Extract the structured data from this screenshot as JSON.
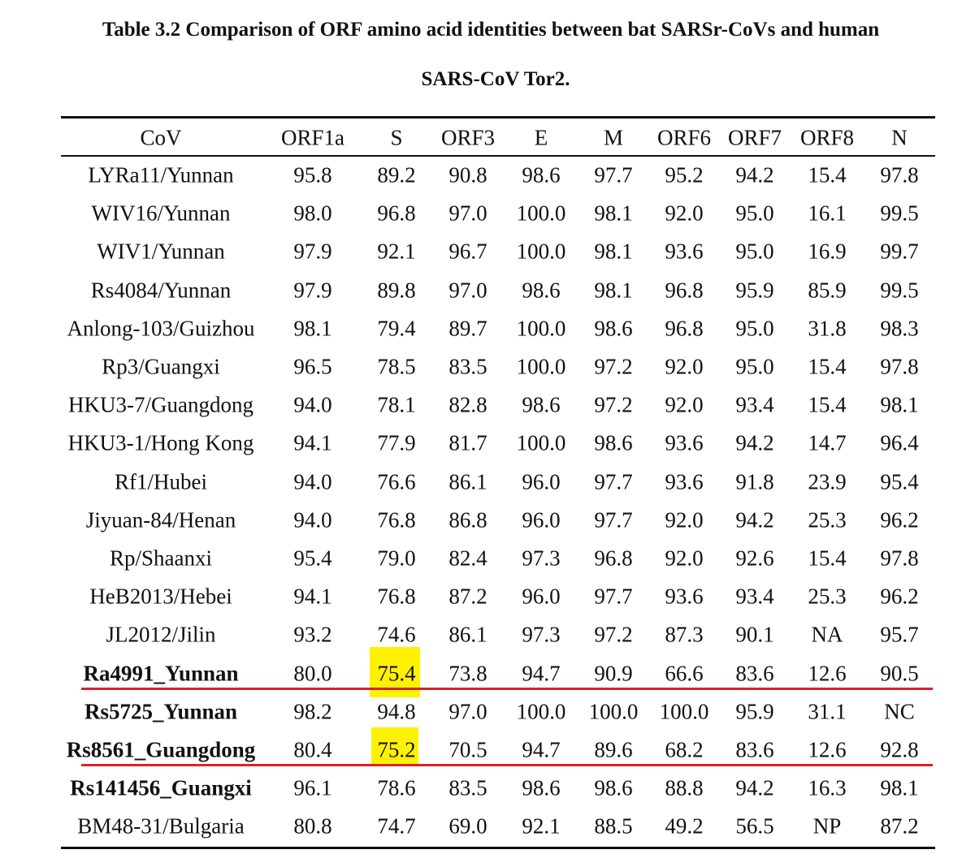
{
  "title": {
    "line1": "Table 3.2 Comparison of ORF amino acid identities between bat SARSr-CoVs and human",
    "line2": "SARS-CoV Tor2."
  },
  "table": {
    "header": [
      "CoV",
      "ORF1a",
      "S",
      "ORF3",
      "E",
      "M",
      "ORF6",
      "ORF7",
      "ORF8",
      "N"
    ],
    "rows": [
      [
        "LYRa11/Yunnan",
        "95.8",
        "89.2",
        "90.8",
        "98.6",
        "97.7",
        "95.2",
        "94.2",
        "15.4",
        "97.8"
      ],
      [
        "WIV16/Yunnan",
        "98.0",
        "96.8",
        "97.0",
        "100.0",
        "98.1",
        "92.0",
        "95.0",
        "16.1",
        "99.5"
      ],
      [
        "WIV1/Yunnan",
        "97.9",
        "92.1",
        "96.7",
        "100.0",
        "98.1",
        "93.6",
        "95.0",
        "16.9",
        "99.7"
      ],
      [
        "Rs4084/Yunnan",
        "97.9",
        "89.8",
        "97.0",
        "98.6",
        "98.1",
        "96.8",
        "95.9",
        "85.9",
        "99.5"
      ],
      [
        "Anlong-103/Guizhou",
        "98.1",
        "79.4",
        "89.7",
        "100.0",
        "98.6",
        "96.8",
        "95.0",
        "31.8",
        "98.3"
      ],
      [
        "Rp3/Guangxi",
        "96.5",
        "78.5",
        "83.5",
        "100.0",
        "97.2",
        "92.0",
        "95.0",
        "15.4",
        "97.8"
      ],
      [
        "HKU3-7/Guangdong",
        "94.0",
        "78.1",
        "82.8",
        "98.6",
        "97.2",
        "92.0",
        "93.4",
        "15.4",
        "98.1"
      ],
      [
        "HKU3-1/Hong Kong",
        "94.1",
        "77.9",
        "81.7",
        "100.0",
        "98.6",
        "93.6",
        "94.2",
        "14.7",
        "96.4"
      ],
      [
        "Rf1/Hubei",
        "94.0",
        "76.6",
        "86.1",
        "96.0",
        "97.7",
        "93.6",
        "91.8",
        "23.9",
        "95.4"
      ],
      [
        "Jiyuan-84/Henan",
        "94.0",
        "76.8",
        "86.8",
        "96.0",
        "97.7",
        "92.0",
        "94.2",
        "25.3",
        "96.2"
      ],
      [
        "Rp/Shaanxi",
        "95.4",
        "79.0",
        "82.4",
        "97.3",
        "96.8",
        "92.0",
        "92.6",
        "15.4",
        "97.8"
      ],
      [
        "HeB2013/Hebei",
        "94.1",
        "76.8",
        "87.2",
        "96.0",
        "97.7",
        "93.6",
        "93.4",
        "25.3",
        "96.2"
      ],
      [
        "JL2012/Jilin",
        "93.2",
        "74.6",
        "86.1",
        "97.3",
        "97.2",
        "87.3",
        "90.1",
        "NA",
        "95.7"
      ],
      [
        "Ra4991_Yunnan",
        "80.0",
        "75.4",
        "73.8",
        "94.7",
        "90.9",
        "66.6",
        "83.6",
        "12.6",
        "90.5"
      ],
      [
        "Rs5725_Yunnan",
        "98.2",
        "94.8",
        "97.0",
        "100.0",
        "100.0",
        "100.0",
        "95.9",
        "31.1",
        "NC"
      ],
      [
        "Rs8561_Guangdong",
        "80.4",
        "75.2",
        "70.5",
        "94.7",
        "89.6",
        "68.2",
        "83.6",
        "12.6",
        "92.8"
      ],
      [
        "Rs141456_Guangxi",
        "96.1",
        "78.6",
        "83.5",
        "98.6",
        "98.6",
        "88.8",
        "94.2",
        "16.3",
        "98.1"
      ],
      [
        "BM48-31/Bulgaria",
        "80.8",
        "74.7",
        "69.0",
        "92.1",
        "88.5",
        "49.2",
        "56.5",
        "NP",
        "87.2"
      ]
    ]
  }
}
